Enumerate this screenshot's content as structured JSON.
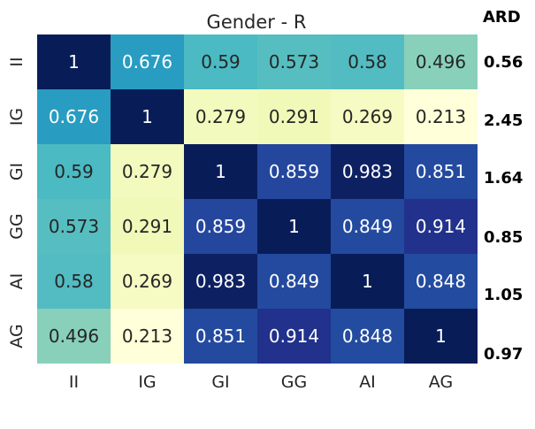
{
  "chart_data": {
    "type": "heatmap",
    "title": "Gender - R",
    "x_categories": [
      "II",
      "IG",
      "GI",
      "GG",
      "AI",
      "AG"
    ],
    "y_categories": [
      "II",
      "IG",
      "GI",
      "GG",
      "AI",
      "AG"
    ],
    "values": [
      [
        1,
        0.676,
        0.59,
        0.573,
        0.58,
        0.496
      ],
      [
        0.676,
        1,
        0.279,
        0.291,
        0.269,
        0.213
      ],
      [
        0.59,
        0.279,
        1,
        0.859,
        0.983,
        0.851
      ],
      [
        0.573,
        0.291,
        0.859,
        1,
        0.849,
        0.914
      ],
      [
        0.58,
        0.269,
        0.983,
        0.849,
        1,
        0.848
      ],
      [
        0.496,
        0.213,
        0.851,
        0.914,
        0.848,
        1
      ]
    ],
    "value_labels": [
      [
        "1",
        "0.676",
        "0.59",
        "0.573",
        "0.58",
        "0.496"
      ],
      [
        "0.676",
        "1",
        "0.279",
        "0.291",
        "0.269",
        "0.213"
      ],
      [
        "0.59",
        "0.279",
        "1",
        "0.859",
        "0.983",
        "0.851"
      ],
      [
        "0.573",
        "0.291",
        "0.859",
        "1",
        "0.849",
        "0.914"
      ],
      [
        "0.58",
        "0.269",
        "0.983",
        "0.849",
        "1",
        "0.848"
      ],
      [
        "0.496",
        "0.213",
        "0.851",
        "0.914",
        "0.848",
        "1"
      ]
    ],
    "colormap": "YlGnBu",
    "color_range": [
      0.213,
      1
    ],
    "colorbar": false,
    "side_annotation": {
      "header": "ARD",
      "labels": [
        "0.56",
        "2.45",
        "1.64",
        "0.85",
        "1.05",
        "0.97"
      ]
    }
  }
}
